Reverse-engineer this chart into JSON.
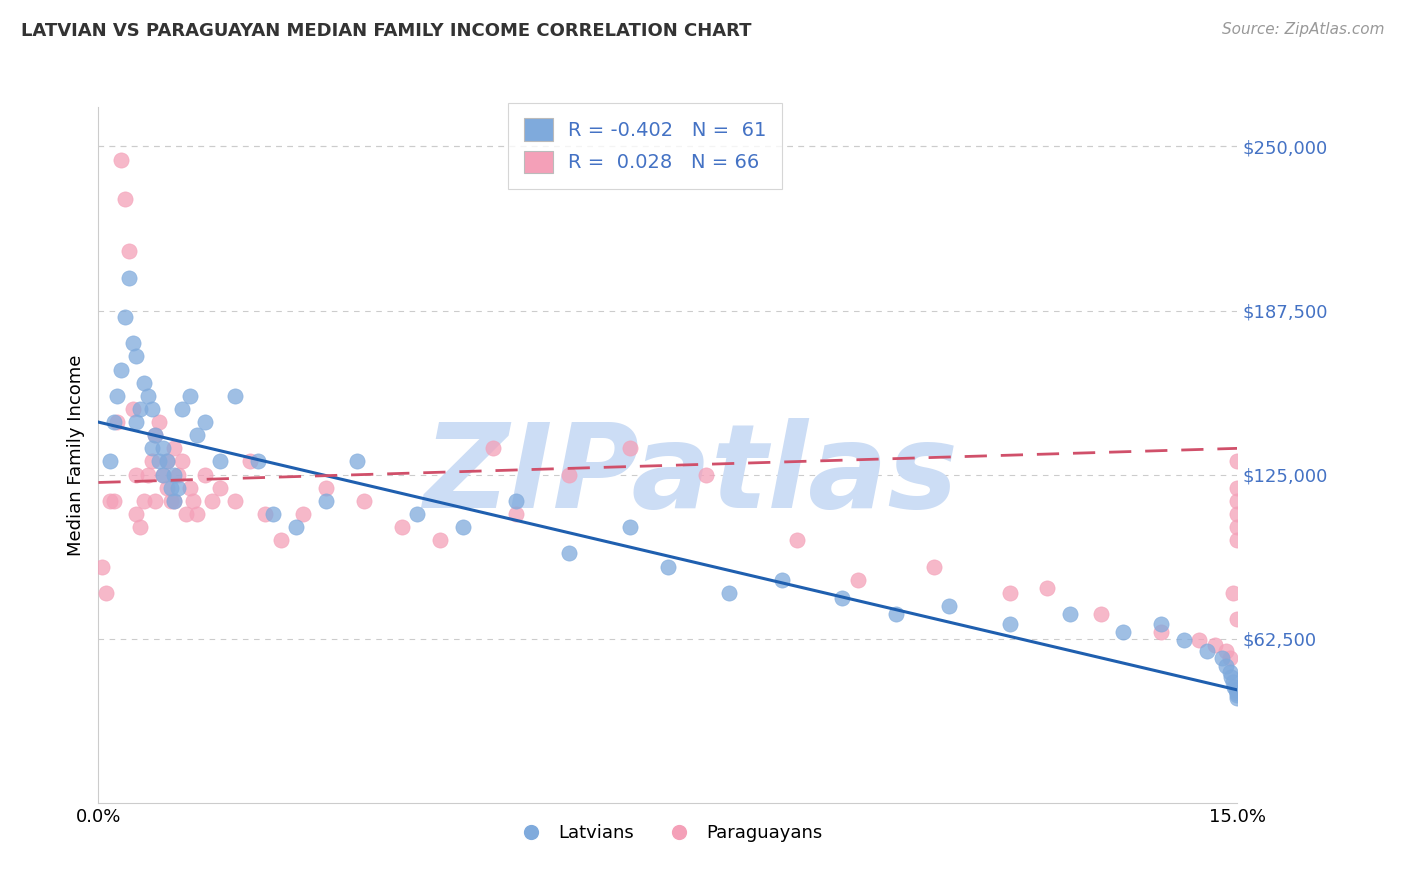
{
  "title": "LATVIAN VS PARAGUAYAN MEDIAN FAMILY INCOME CORRELATION CHART",
  "source": "Source: ZipAtlas.com",
  "ylabel": "Median Family Income",
  "yticks": [
    0,
    62500,
    125000,
    187500,
    250000
  ],
  "ytick_labels": [
    "",
    "$62,500",
    "$125,000",
    "$187,500",
    "$250,000"
  ],
  "xlim": [
    0.0,
    15.0
  ],
  "ylim": [
    0,
    265000
  ],
  "latvian_color": "#7faadc",
  "paraguayan_color": "#f4a0b8",
  "latvian_line_color": "#1f5faf",
  "paraguayan_line_color": "#d0506a",
  "R_latvian": -0.402,
  "N_latvian": 61,
  "R_paraguayan": 0.028,
  "N_paraguayan": 66,
  "watermark": "ZIPatlas",
  "watermark_color": "#ccddf5",
  "background_color": "#ffffff",
  "grid_color": "#cccccc",
  "lat_trend": [
    145000,
    43000
  ],
  "par_trend": [
    122000,
    135000
  ],
  "latvian_x": [
    0.15,
    0.2,
    0.25,
    0.3,
    0.35,
    0.4,
    0.45,
    0.5,
    0.5,
    0.55,
    0.6,
    0.65,
    0.7,
    0.7,
    0.75,
    0.8,
    0.85,
    0.85,
    0.9,
    0.95,
    1.0,
    1.0,
    1.05,
    1.1,
    1.2,
    1.3,
    1.4,
    1.6,
    1.8,
    2.1,
    2.3,
    2.6,
    3.0,
    3.4,
    4.2,
    4.8,
    5.5,
    6.2,
    7.0,
    7.5,
    8.3,
    9.0,
    9.8,
    10.5,
    11.2,
    12.0,
    12.8,
    13.5,
    14.0,
    14.3,
    14.6,
    14.8,
    14.85,
    14.9,
    14.92,
    14.94,
    14.96,
    14.98,
    15.0,
    15.0,
    15.0
  ],
  "latvian_y": [
    130000,
    145000,
    155000,
    165000,
    185000,
    200000,
    175000,
    170000,
    145000,
    150000,
    160000,
    155000,
    150000,
    135000,
    140000,
    130000,
    125000,
    135000,
    130000,
    120000,
    125000,
    115000,
    120000,
    150000,
    155000,
    140000,
    145000,
    130000,
    155000,
    130000,
    110000,
    105000,
    115000,
    130000,
    110000,
    105000,
    115000,
    95000,
    105000,
    90000,
    80000,
    85000,
    78000,
    72000,
    75000,
    68000,
    72000,
    65000,
    68000,
    62000,
    58000,
    55000,
    52000,
    50000,
    48000,
    46000,
    44000,
    43000,
    42000,
    41000,
    40000
  ],
  "paraguayan_x": [
    0.05,
    0.1,
    0.15,
    0.2,
    0.25,
    0.3,
    0.35,
    0.4,
    0.45,
    0.5,
    0.5,
    0.55,
    0.6,
    0.65,
    0.7,
    0.75,
    0.75,
    0.8,
    0.85,
    0.9,
    0.9,
    0.95,
    1.0,
    1.0,
    1.05,
    1.1,
    1.15,
    1.2,
    1.25,
    1.3,
    1.4,
    1.5,
    1.6,
    1.8,
    2.0,
    2.2,
    2.4,
    2.7,
    3.0,
    3.5,
    4.0,
    4.5,
    5.2,
    5.5,
    6.2,
    7.0,
    8.0,
    9.2,
    10.0,
    11.0,
    12.0,
    12.5,
    13.2,
    14.0,
    14.5,
    14.7,
    14.85,
    14.9,
    14.95,
    15.0,
    15.0,
    15.0,
    15.0,
    15.0,
    15.0,
    15.0
  ],
  "paraguayan_y": [
    90000,
    80000,
    115000,
    115000,
    145000,
    245000,
    230000,
    210000,
    150000,
    125000,
    110000,
    105000,
    115000,
    125000,
    130000,
    140000,
    115000,
    145000,
    125000,
    120000,
    130000,
    115000,
    135000,
    115000,
    125000,
    130000,
    110000,
    120000,
    115000,
    110000,
    125000,
    115000,
    120000,
    115000,
    130000,
    110000,
    100000,
    110000,
    120000,
    115000,
    105000,
    100000,
    135000,
    110000,
    125000,
    135000,
    125000,
    100000,
    85000,
    90000,
    80000,
    82000,
    72000,
    65000,
    62000,
    60000,
    58000,
    55000,
    80000,
    130000,
    120000,
    115000,
    110000,
    105000,
    100000,
    70000
  ]
}
